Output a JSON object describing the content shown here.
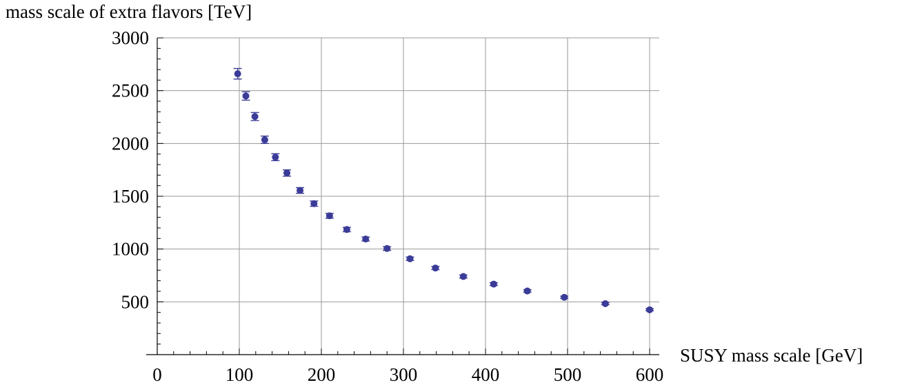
{
  "chart_data": {
    "type": "scatter",
    "title": "",
    "xlabel": "SUSY mass scale [GeV]",
    "ylabel": "mass scale of extra flavors [TeV]",
    "xlim": [
      0,
      600
    ],
    "ylim": [
      0,
      3000
    ],
    "x_ticks": [
      0,
      100,
      200,
      300,
      400,
      500,
      600
    ],
    "y_ticks": [
      500,
      1000,
      1500,
      2000,
      2500,
      3000
    ],
    "x_minor_step": 20,
    "y_minor_step": 100,
    "grid": true,
    "marker_color": "#3b3b98",
    "grid_color": "#9a9a9a",
    "series": [
      {
        "points": [
          {
            "x": 98,
            "y": 2660,
            "err": 50
          },
          {
            "x": 108,
            "y": 2450,
            "err": 40
          },
          {
            "x": 119,
            "y": 2255,
            "err": 38
          },
          {
            "x": 131,
            "y": 2035,
            "err": 35
          },
          {
            "x": 144,
            "y": 1870,
            "err": 33
          },
          {
            "x": 158,
            "y": 1720,
            "err": 30
          },
          {
            "x": 174,
            "y": 1555,
            "err": 27
          },
          {
            "x": 191,
            "y": 1430,
            "err": 25
          },
          {
            "x": 210,
            "y": 1315,
            "err": 23
          },
          {
            "x": 231,
            "y": 1185,
            "err": 21
          },
          {
            "x": 254,
            "y": 1095,
            "err": 19
          },
          {
            "x": 280,
            "y": 1005,
            "err": 18
          },
          {
            "x": 308,
            "y": 908,
            "err": 16
          },
          {
            "x": 339,
            "y": 820,
            "err": 15
          },
          {
            "x": 373,
            "y": 740,
            "err": 14
          },
          {
            "x": 410,
            "y": 668,
            "err": 13
          },
          {
            "x": 451,
            "y": 603,
            "err": 12
          },
          {
            "x": 496,
            "y": 543,
            "err": 11
          },
          {
            "x": 546,
            "y": 483,
            "err": 10
          },
          {
            "x": 600,
            "y": 425,
            "err": 10
          }
        ]
      }
    ]
  }
}
